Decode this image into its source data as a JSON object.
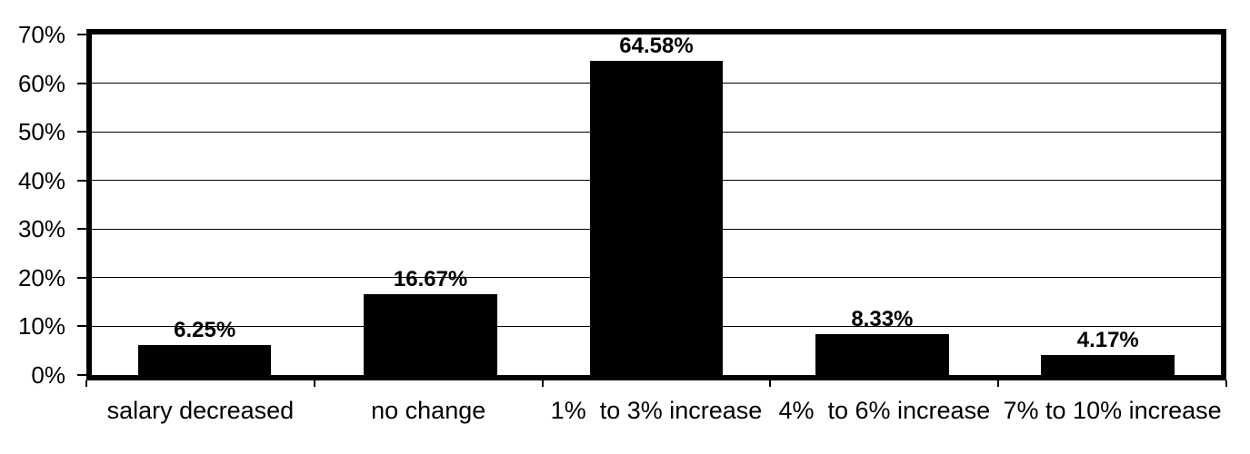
{
  "chart_data": {
    "type": "bar",
    "title": "",
    "xlabel": "",
    "ylabel": "",
    "categories": [
      "salary decreased",
      "no change",
      "1%  to 3% increase",
      "4%  to 6% increase",
      "7% to 10% increase"
    ],
    "values": [
      6.25,
      16.67,
      64.58,
      8.33,
      4.17
    ],
    "data_labels": [
      "6.25%",
      "16.67%",
      "64.58%",
      "8.33%",
      "4.17%"
    ],
    "y_ticks": [
      {
        "value": 0,
        "label": "0%"
      },
      {
        "value": 10,
        "label": "10%"
      },
      {
        "value": 20,
        "label": "20%"
      },
      {
        "value": 30,
        "label": "30%"
      },
      {
        "value": 40,
        "label": "40%"
      },
      {
        "value": 50,
        "label": "50%"
      },
      {
        "value": 60,
        "label": "60%"
      },
      {
        "value": 70,
        "label": "70%"
      }
    ],
    "ylim": [
      0,
      70
    ],
    "grid": true,
    "legend": "none",
    "bar_color": "#000000",
    "axis_color": "#000000",
    "background_color": "#ffffff"
  }
}
